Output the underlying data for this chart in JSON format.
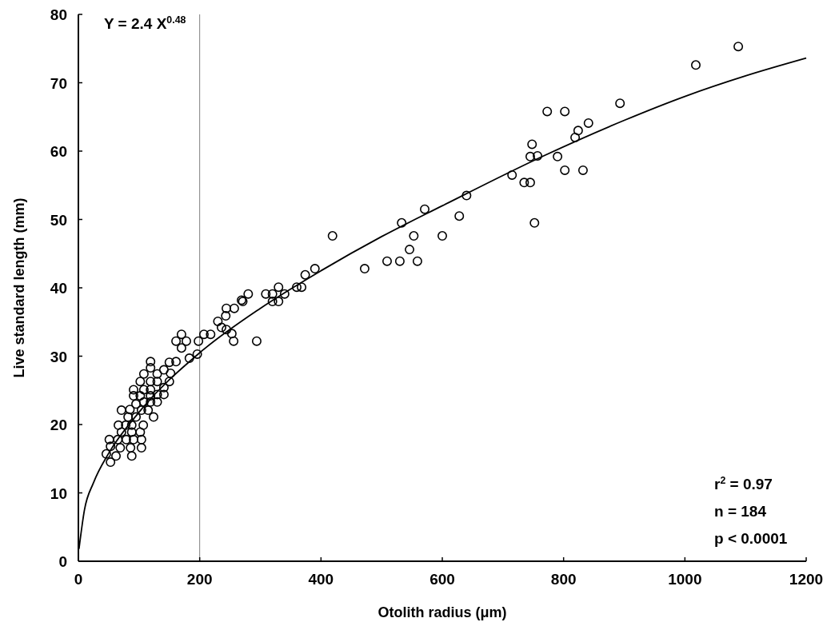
{
  "chart_data": {
    "type": "scatter",
    "xlabel": "Otolith radius (μm)",
    "ylabel": "Live standard length (mm)",
    "xlim": [
      0,
      1200
    ],
    "ylim": [
      0,
      80
    ],
    "xticks": [
      0,
      200,
      400,
      600,
      800,
      1000,
      1200
    ],
    "yticks": [
      0,
      10,
      20,
      30,
      40,
      50,
      60,
      70,
      80
    ],
    "grid": false,
    "annotations": [
      "Y = 2.4 X$^{0.48}$",
      "r$^{2}$ = 0.97",
      "n = 184",
      "p < 0.0001"
    ],
    "ref_lines": [
      {
        "axis": "x",
        "value": 200,
        "color": "#808080"
      }
    ],
    "series": [
      {
        "marker": "circle",
        "color": "#000000",
        "x": [
          1018,
          1088,
          893,
          773,
          802,
          841,
          824,
          819,
          790,
          802,
          832,
          640,
          628,
          715,
          735,
          745,
          748,
          745,
          757,
          752,
          571,
          533,
          419,
          553,
          600,
          546,
          472,
          509,
          530,
          559,
          390,
          374,
          368,
          360,
          330,
          309,
          320,
          340,
          320,
          330,
          280,
          271,
          257,
          244,
          256,
          294,
          253,
          244,
          269,
          243,
          230,
          236,
          207,
          218,
          198,
          196,
          183,
          170,
          161,
          178,
          170,
          161,
          150,
          119,
          119,
          108,
          130,
          141,
          152,
          150,
          141,
          130,
          119,
          102,
          91,
          108,
          119,
          130,
          141,
          91,
          102,
          108,
          119,
          119,
          130,
          95,
          85,
          71,
          104,
          115,
          124,
          95,
          82,
          66,
          78,
          88,
          107,
          71,
          88,
          102,
          51,
          65,
          79,
          91,
          104,
          53,
          69,
          86,
          104,
          46,
          62,
          88,
          53
        ],
        "values": [
          72.6,
          75.3,
          67.0,
          65.8,
          65.8,
          64.1,
          63.0,
          62.0,
          59.2,
          57.2,
          57.2,
          53.5,
          50.5,
          56.5,
          55.4,
          55.4,
          61.0,
          59.2,
          59.3,
          49.5,
          51.5,
          49.5,
          47.6,
          47.6,
          47.6,
          45.6,
          42.8,
          43.9,
          43.9,
          43.9,
          42.8,
          41.9,
          40.1,
          40.1,
          40.1,
          39.1,
          39.1,
          39.1,
          38.0,
          38.0,
          39.1,
          38.0,
          37.0,
          37.0,
          32.2,
          32.2,
          33.3,
          33.9,
          38.2,
          35.9,
          35.1,
          34.2,
          33.2,
          33.2,
          32.2,
          30.3,
          29.7,
          33.2,
          32.2,
          32.2,
          31.2,
          29.2,
          29.1,
          29.2,
          28.3,
          27.4,
          27.4,
          28.0,
          27.5,
          26.3,
          25.4,
          26.3,
          26.3,
          26.3,
          25.1,
          25.1,
          25.1,
          24.4,
          24.4,
          24.2,
          24.2,
          23.3,
          24.2,
          23.3,
          23.3,
          23.0,
          22.2,
          22.1,
          22.1,
          22.1,
          21.1,
          21.1,
          21.1,
          19.9,
          19.9,
          19.9,
          19.9,
          18.9,
          18.9,
          18.9,
          17.8,
          17.8,
          17.8,
          17.8,
          17.8,
          16.8,
          16.6,
          16.6,
          16.6,
          15.7,
          15.4,
          15.4,
          14.5
        ]
      },
      {
        "type": "line",
        "color": "#000000",
        "x": [
          1,
          10,
          25,
          50,
          100,
          200,
          300,
          400,
          500,
          600,
          767,
          900,
          1000,
          1100,
          1200
        ],
        "values": [
          1.8,
          7.5,
          11.5,
          15.8,
          21.8,
          30.5,
          37,
          42.5,
          47.5,
          52,
          59.3,
          64.5,
          68,
          71,
          73.6
        ]
      }
    ]
  }
}
